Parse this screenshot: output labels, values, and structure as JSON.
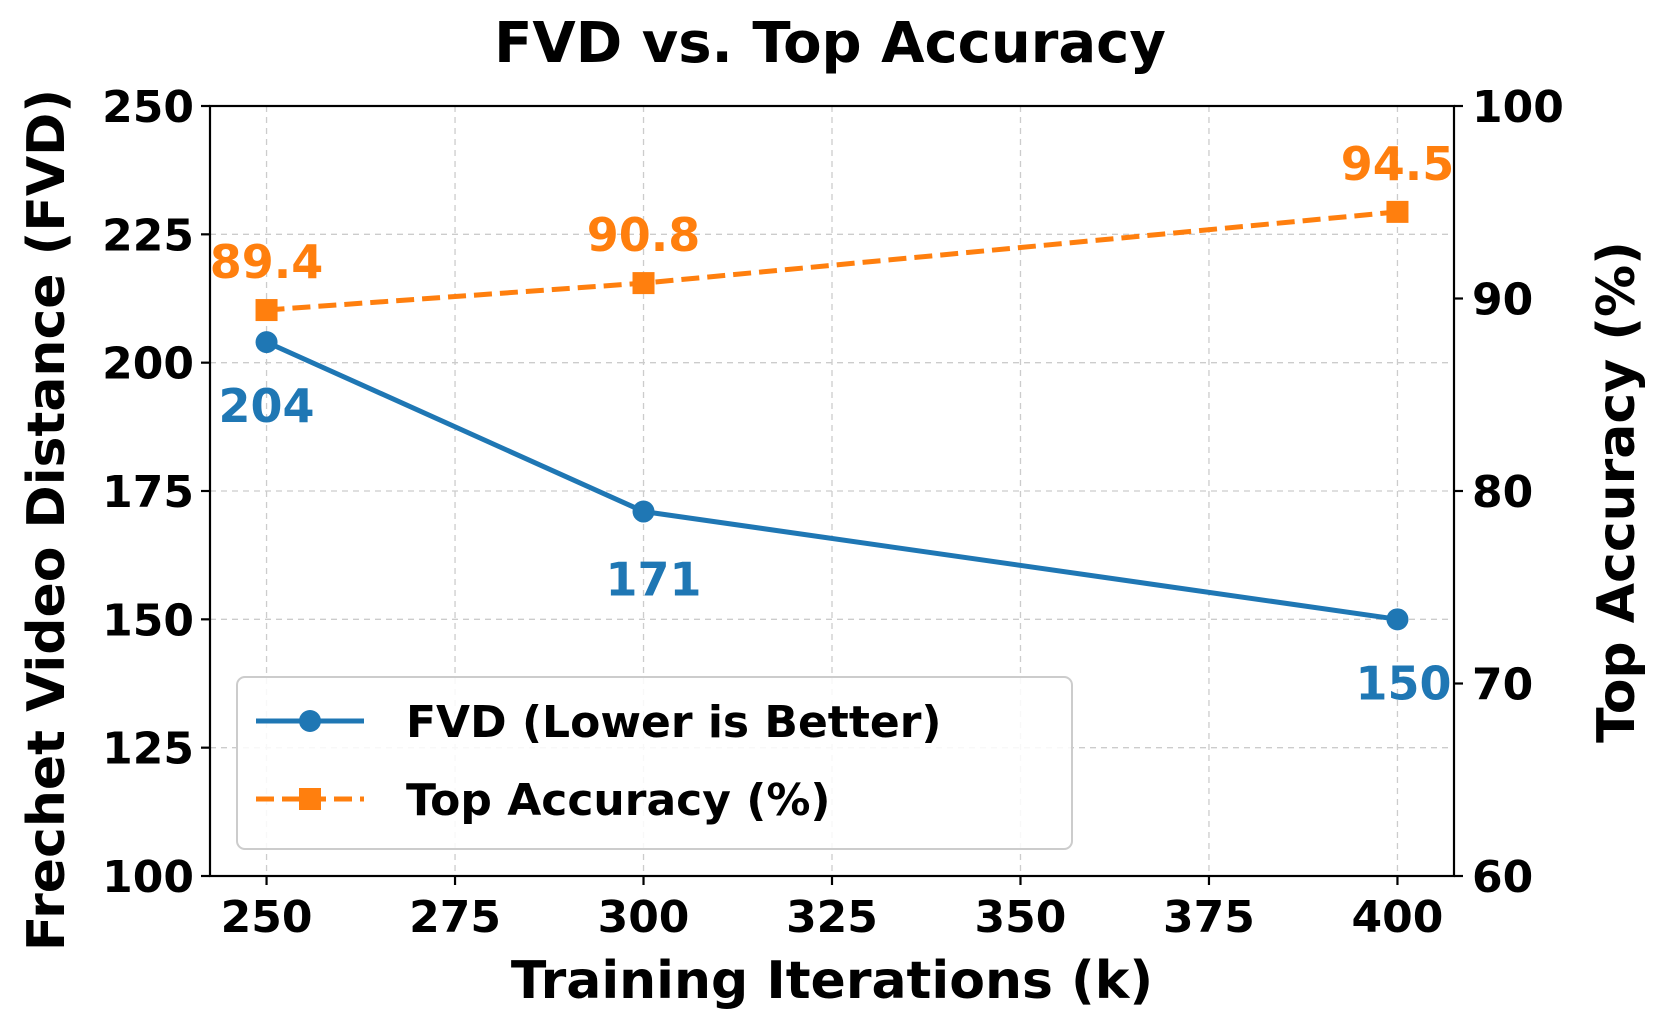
{
  "chart_data": {
    "type": "line",
    "title": "FVD vs. Top Accuracy",
    "xlabel": "Training Iterations (k)",
    "ylabel_left": "Frechet Video Distance (FVD)",
    "ylabel_right": "Top Accuracy (%)",
    "xlim": [
      242.5,
      407.5
    ],
    "ylim_left": [
      100,
      250
    ],
    "ylim_right": [
      60,
      100
    ],
    "x_ticks": [
      250,
      275,
      300,
      325,
      350,
      375,
      400
    ],
    "y_ticks_left": [
      100,
      125,
      150,
      175,
      200,
      225,
      250
    ],
    "y_ticks_right": [
      60,
      70,
      80,
      90,
      100
    ],
    "grid": true,
    "legend_position": "lower-left",
    "series": [
      {
        "name": "FVD (Lower is Better)",
        "axis": "left",
        "color": "#1f77b4",
        "marker": "circle",
        "linestyle": "solid",
        "x": [
          250,
          300,
          400
        ],
        "values": [
          204,
          171,
          150
        ],
        "labels": [
          "204",
          "171",
          "150"
        ]
      },
      {
        "name": "Top Accuracy (%)",
        "axis": "right",
        "color": "#ff7f0e",
        "marker": "square",
        "linestyle": "dashed",
        "x": [
          250,
          300,
          400
        ],
        "values": [
          89.4,
          90.8,
          94.5
        ],
        "labels": [
          "89.4",
          "90.8",
          "94.5"
        ]
      }
    ]
  }
}
